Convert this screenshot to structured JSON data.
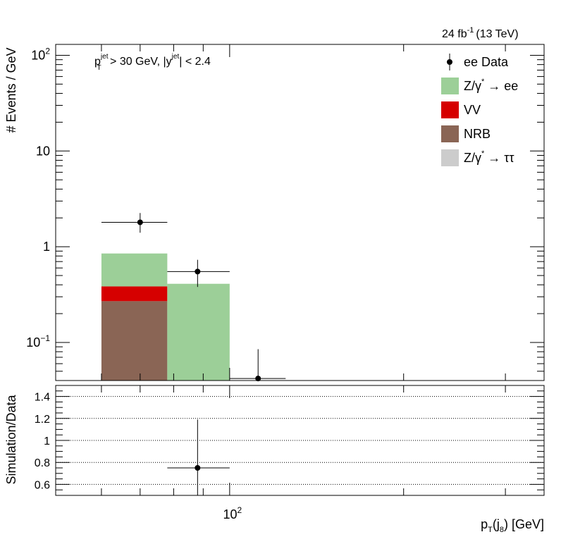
{
  "lumi_label": "24 fb",
  "lumi_sup": "-1",
  "lumi_energy": "(13 TeV)",
  "cut_label": {
    "pt": "p",
    "pt_sup": "jet",
    "pt_sub": "T",
    "pt_cut": " > 30 GeV,  |y",
    "y_sup": "jet",
    "y_cut": "| < 2.4"
  },
  "legend": [
    {
      "key": "ee-data",
      "label": "ee Data",
      "marker": "point",
      "color": "#000000"
    },
    {
      "key": "zgamma-ee",
      "label": "Z/γ* → ee",
      "label_main": "Z/γ",
      "label_sup": "*",
      "label_tail": " → ee",
      "marker": "box",
      "color": "#9ccf98"
    },
    {
      "key": "vv",
      "label": "VV",
      "marker": "box",
      "color": "#d60000"
    },
    {
      "key": "nrb",
      "label": "NRB",
      "marker": "box",
      "color": "#8a6555"
    },
    {
      "key": "zgamma-tautau",
      "label": "Z/γ* → ττ",
      "label_main": "Z/γ",
      "label_sup": "*",
      "label_tail": " → ττ",
      "marker": "box",
      "color": "#cccccc"
    }
  ],
  "chart_data": [
    {
      "type": "bar",
      "name": "main",
      "yscale": "log",
      "ylabel": "# Events / GeV",
      "xscale": "log",
      "xlim": [
        50,
        350
      ],
      "ylim": [
        0.04,
        130
      ],
      "y_ticks": [
        {
          "value": 100,
          "base": "10",
          "exp": "2"
        },
        {
          "value": 10,
          "label": "10"
        },
        {
          "value": 1,
          "label": "1"
        },
        {
          "value": 0.1,
          "base": "10",
          "exp": "−1"
        }
      ],
      "bins": [
        [
          60,
          78
        ],
        [
          78,
          100
        ],
        [
          100,
          125
        ]
      ],
      "stack": [
        {
          "name": "NRB",
          "color": "#8a6555",
          "values": [
            0.27,
            0,
            0
          ]
        },
        {
          "name": "VV",
          "color": "#d60000",
          "values": [
            0.115,
            0,
            0
          ]
        },
        {
          "name": "Z/γ* → ee",
          "color": "#9ccf98",
          "values": [
            0.465,
            0.41,
            0
          ]
        }
      ],
      "data": [
        {
          "x": 70,
          "xlo": 60,
          "xhi": 78,
          "y": 1.8,
          "ylo": 1.4,
          "yhi": 2.25
        },
        {
          "x": 88,
          "xlo": 78,
          "xhi": 100,
          "y": 0.55,
          "ylo": 0.38,
          "yhi": 0.73
        },
        {
          "x": 112,
          "xlo": 100,
          "xhi": 125,
          "y": 0.042,
          "ylo": 0.01,
          "yhi": 0.085
        }
      ]
    },
    {
      "type": "scatter",
      "name": "ratio",
      "ylabel": "Simulation/Data",
      "xlabel": "p_T(j_8) [GeV]",
      "xlabel_parts": {
        "main": "p",
        "sub1": "T",
        "mid": "(j",
        "sub2": "8",
        "tail": ") [GeV]"
      },
      "xscale": "log",
      "xlim": [
        50,
        350
      ],
      "ylim": [
        0.5,
        1.5
      ],
      "y_ticks": [
        0.6,
        0.8,
        1,
        1.2,
        1.4
      ],
      "y_tick_labels": [
        "0.6",
        "0.8",
        "1",
        "1.2",
        "1.4"
      ],
      "grid": "horizontal dotted",
      "x_tick_label": {
        "value": 100,
        "base": "10",
        "exp": "2"
      },
      "points": [
        {
          "x": 88,
          "xlo": 78,
          "xhi": 100,
          "y": 0.75,
          "ylo": 0.3,
          "yhi": 1.19
        }
      ]
    }
  ]
}
